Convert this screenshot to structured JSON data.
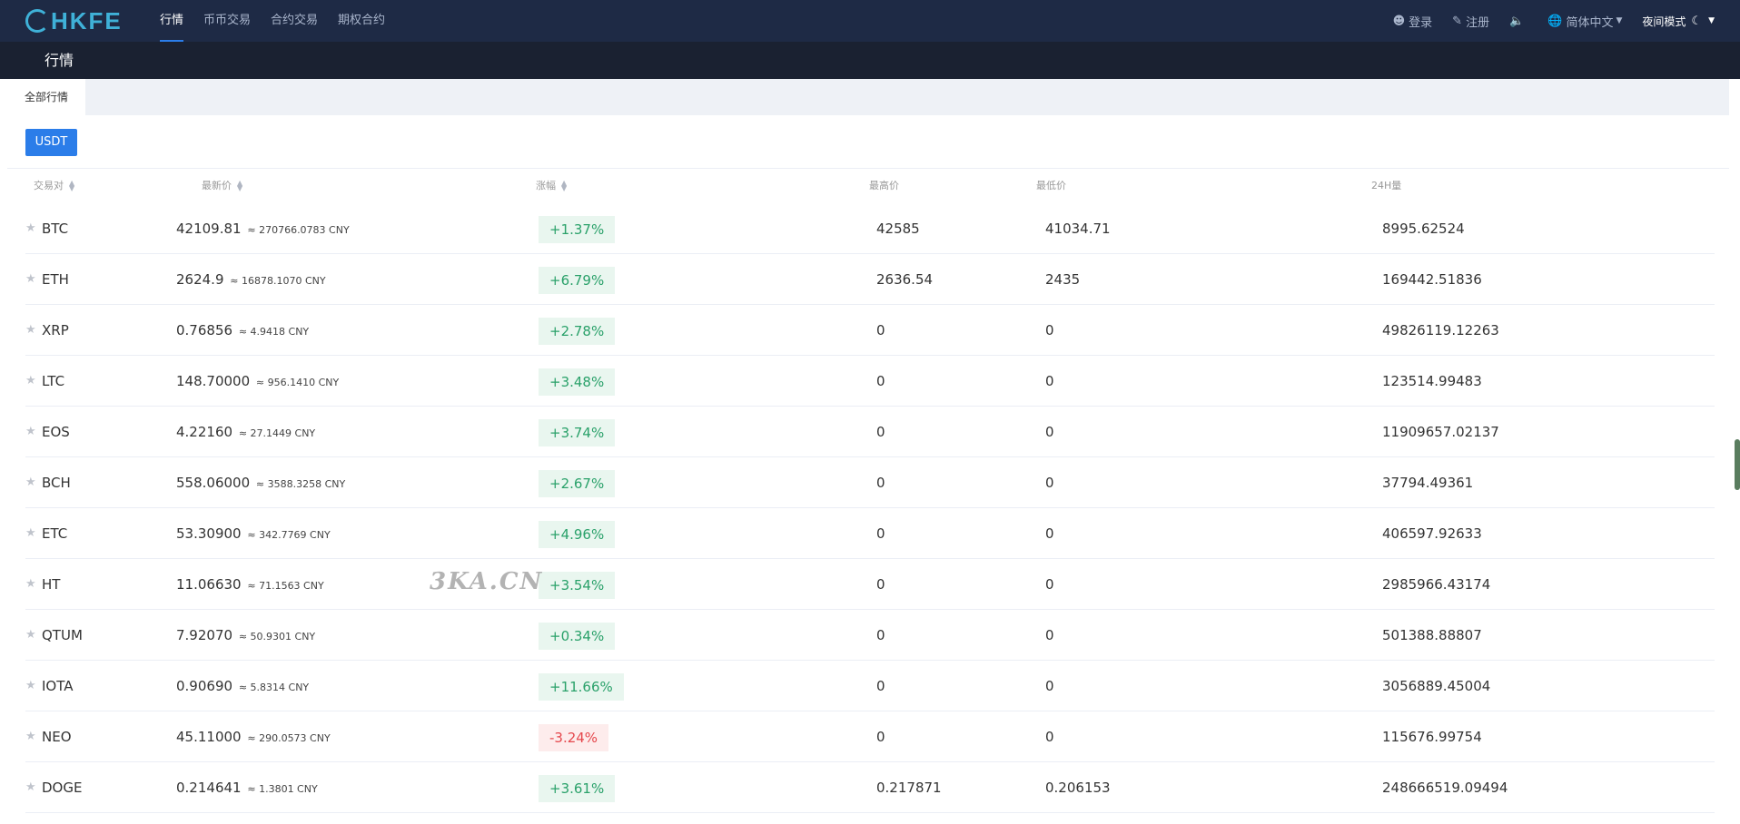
{
  "brand": {
    "logo_text": "HKFE"
  },
  "nav": {
    "items": [
      {
        "label": "行情",
        "active": true
      },
      {
        "label": "币币交易",
        "active": false
      },
      {
        "label": "合约交易",
        "active": false
      },
      {
        "label": "期权合约",
        "active": false
      }
    ]
  },
  "right_nav": {
    "login": "登录",
    "register": "注册",
    "language": "简体中文",
    "night_mode": "夜间模式"
  },
  "page": {
    "title": "行情"
  },
  "tabs": {
    "all_markets": "全部行情"
  },
  "quote_button": "USDT",
  "table": {
    "headers": {
      "pair": "交易对",
      "last": "最新价",
      "change": "涨幅",
      "high": "最高价",
      "low": "最低价",
      "volume": "24H量"
    },
    "rows": [
      {
        "pair": "BTC",
        "last": "42109.81",
        "cny": "≈ 270766.0783 CNY",
        "change": "+1.37%",
        "negative": false,
        "high": "42585",
        "low": "41034.71",
        "volume": "8995.62524"
      },
      {
        "pair": "ETH",
        "last": "2624.9",
        "cny": "≈ 16878.1070 CNY",
        "change": "+6.79%",
        "negative": false,
        "high": "2636.54",
        "low": "2435",
        "volume": "169442.51836"
      },
      {
        "pair": "XRP",
        "last": "0.76856",
        "cny": "≈ 4.9418 CNY",
        "change": "+2.78%",
        "negative": false,
        "high": "0",
        "low": "0",
        "volume": "49826119.12263"
      },
      {
        "pair": "LTC",
        "last": "148.70000",
        "cny": "≈ 956.1410 CNY",
        "change": "+3.48%",
        "negative": false,
        "high": "0",
        "low": "0",
        "volume": "123514.99483"
      },
      {
        "pair": "EOS",
        "last": "4.22160",
        "cny": "≈ 27.1449 CNY",
        "change": "+3.74%",
        "negative": false,
        "high": "0",
        "low": "0",
        "volume": "11909657.02137"
      },
      {
        "pair": "BCH",
        "last": "558.06000",
        "cny": "≈ 3588.3258 CNY",
        "change": "+2.67%",
        "negative": false,
        "high": "0",
        "low": "0",
        "volume": "37794.49361"
      },
      {
        "pair": "ETC",
        "last": "53.30900",
        "cny": "≈ 342.7769 CNY",
        "change": "+4.96%",
        "negative": false,
        "high": "0",
        "low": "0",
        "volume": "406597.92633"
      },
      {
        "pair": "HT",
        "last": "11.06630",
        "cny": "≈ 71.1563 CNY",
        "change": "+3.54%",
        "negative": false,
        "high": "0",
        "low": "0",
        "volume": "2985966.43174"
      },
      {
        "pair": "QTUM",
        "last": "7.92070",
        "cny": "≈ 50.9301 CNY",
        "change": "+0.34%",
        "negative": false,
        "high": "0",
        "low": "0",
        "volume": "501388.88807"
      },
      {
        "pair": "IOTA",
        "last": "0.90690",
        "cny": "≈ 5.8314 CNY",
        "change": "+11.66%",
        "negative": false,
        "high": "0",
        "low": "0",
        "volume": "3056889.45004"
      },
      {
        "pair": "NEO",
        "last": "45.11000",
        "cny": "≈ 290.0573 CNY",
        "change": "-3.24%",
        "negative": true,
        "high": "0",
        "low": "0",
        "volume": "115676.99754"
      },
      {
        "pair": "DOGE",
        "last": "0.214641",
        "cny": "≈ 1.3801 CNY",
        "change": "+3.61%",
        "negative": false,
        "high": "0.217871",
        "low": "0.206153",
        "volume": "248666519.09494"
      }
    ]
  },
  "watermark": "3KA.CN",
  "colors": {
    "topbar": "#1e2a45",
    "subbar": "#1a2131",
    "accent": "#2b7de9",
    "up": "#2aa16a",
    "down": "#e5484d"
  },
  "icons": {
    "login": "user-icon",
    "register": "edit-icon",
    "sound": "speaker-icon",
    "language": "globe-icon",
    "night": "moon-icon",
    "favorite": "star-icon"
  }
}
